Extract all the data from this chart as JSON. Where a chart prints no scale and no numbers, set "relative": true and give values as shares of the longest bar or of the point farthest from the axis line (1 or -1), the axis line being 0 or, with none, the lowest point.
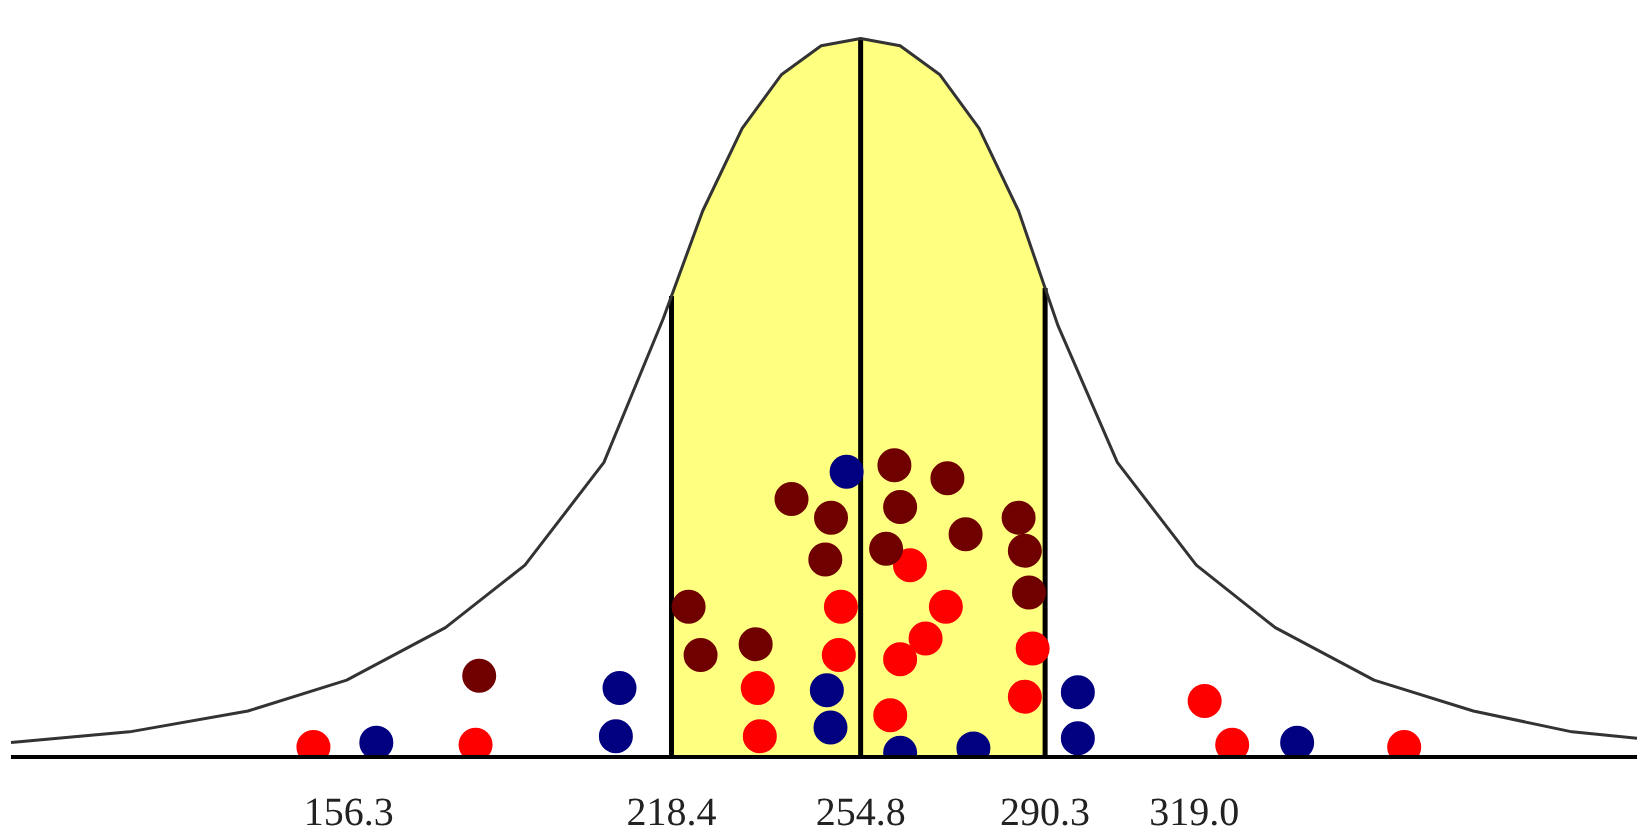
{
  "chart_data": {
    "type": "scatter",
    "relative": true,
    "marker": "circle",
    "grid": false,
    "tick_labels": "x",
    "xlim": [
      91.3,
      404.2
    ],
    "xticks": [
      156.3,
      218.4,
      254.8,
      290.3,
      {
        "value": 319,
        "label": "319.0"
      }
    ],
    "bands": [
      {
        "axis": "x",
        "from": 218.4,
        "to": 290.3,
        "color": "#ffff80"
      }
    ],
    "ref_lines": [
      {
        "axis": "x",
        "value": 218.4,
        "color": "#000000"
      },
      {
        "axis": "x",
        "value": 254.8,
        "color": "#000000"
      },
      {
        "axis": "x",
        "value": 290.3,
        "color": "#000000"
      }
    ],
    "series": [
      {
        "type": "line",
        "marker": "none",
        "color": "#333333",
        "x": [
          91.3,
          114.1,
          136.9,
          155.9,
          174.9,
          190.2,
          205.4,
          216.8,
          224.4,
          232.0,
          239.6,
          247.2,
          254.8,
          262.4,
          270.0,
          277.6,
          285.2,
          292.8,
          304.2,
          319.4,
          334.6,
          353.6,
          372.7,
          391.7,
          404.2
        ],
        "values": [
          0.02,
          0.035,
          0.064,
          0.107,
          0.18,
          0.267,
          0.41,
          0.61,
          0.76,
          0.875,
          0.95,
          0.99,
          1,
          0.99,
          0.95,
          0.875,
          0.76,
          0.6,
          0.41,
          0.267,
          0.18,
          0.107,
          0.064,
          0.035,
          0.026
        ]
      },
      {
        "color": "#ff0000",
        "x": [
          251.0,
          250.6,
          235.0,
          235.4,
          264.3,
          271.2,
          267.3,
          262.4,
          260.5,
          287.9,
          286.4,
          149.5,
          180.7,
          321.0,
          326.3,
          359.4
        ],
        "values": [
          0.209,
          0.142,
          0.096,
          0.029,
          0.267,
          0.209,
          0.165,
          0.136,
          0.058,
          0.151,
          0.084,
          0.014,
          0.017,
          0.078,
          0.017,
          0.014
        ]
      },
      {
        "color": "#000080",
        "x": [
          252.1,
          248.3,
          249.0,
          262.4,
          276.5,
          161.6,
          208.4,
          207.7,
          296.6,
          296.6,
          338.8
        ],
        "values": [
          0.397,
          0.093,
          0.041,
          0.006,
          0.012,
          0.02,
          0.096,
          0.029,
          0.09,
          0.026,
          0.02
        ]
      },
      {
        "color": "#700000",
        "x": [
          241.5,
          249.1,
          248.0,
          261.3,
          271.5,
          262.4,
          275.0,
          259.7,
          285.2,
          286.4,
          287.2,
          221.7,
          224.0,
          234.6,
          181.4
        ],
        "values": [
          0.359,
          0.333,
          0.275,
          0.406,
          0.388,
          0.348,
          0.31,
          0.29,
          0.333,
          0.287,
          0.229,
          0.209,
          0.142,
          0.157,
          0.113
        ]
      }
    ]
  }
}
